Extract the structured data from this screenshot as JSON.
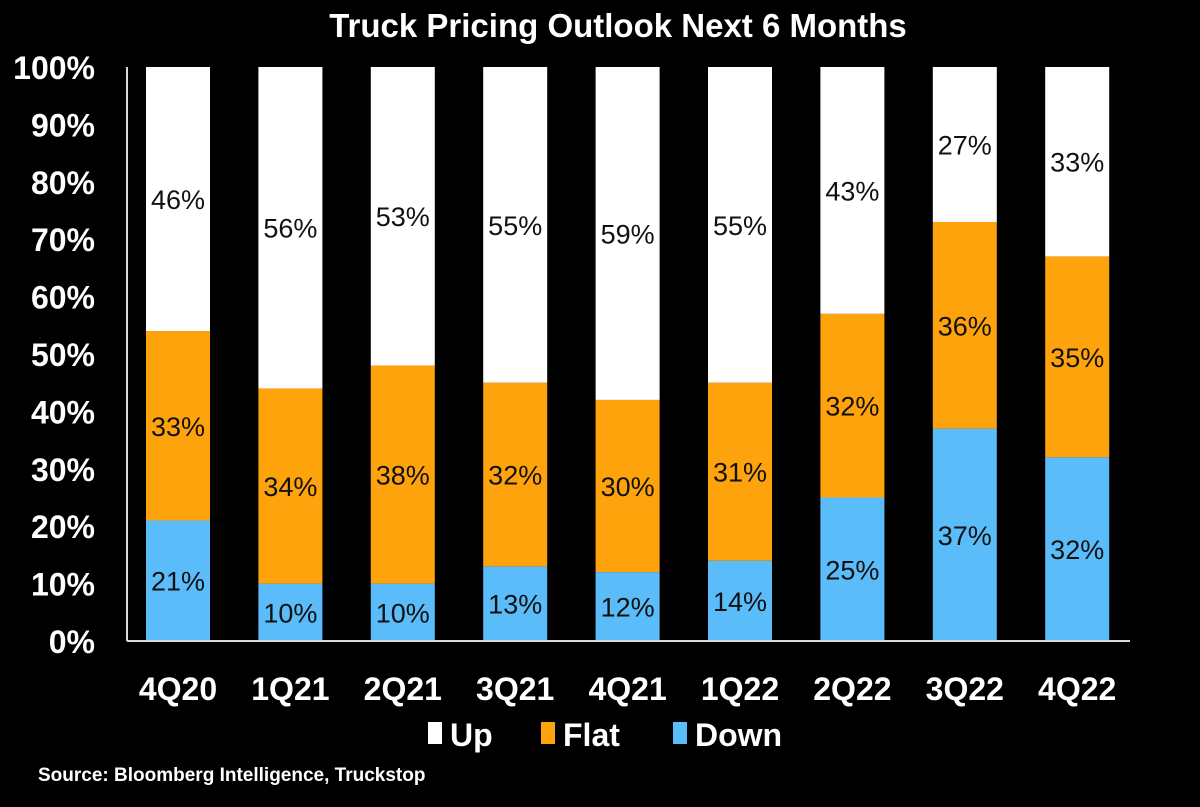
{
  "chart_data": {
    "type": "bar",
    "stacked": true,
    "title": "Truck Pricing Outlook Next 6 Months",
    "xlabel": "",
    "ylabel": "",
    "categories": [
      "4Q20",
      "1Q21",
      "2Q21",
      "3Q21",
      "4Q21",
      "1Q22",
      "2Q22",
      "3Q22",
      "4Q22"
    ],
    "series": [
      {
        "name": "Down",
        "color": "#5bbcfa",
        "values": [
          21,
          10,
          10,
          13,
          12,
          14,
          25,
          37,
          32
        ],
        "labels": [
          "21%",
          "10%",
          "10%",
          "13%",
          "12%",
          "14%",
          "25%",
          "37%",
          "32%"
        ]
      },
      {
        "name": "Flat",
        "color": "#ffa30d",
        "values": [
          33,
          34,
          38,
          32,
          30,
          31,
          32,
          36,
          35
        ],
        "labels": [
          "33%",
          "34%",
          "38%",
          "32%",
          "30%",
          "31%",
          "32%",
          "36%",
          "35%"
        ]
      },
      {
        "name": "Up",
        "color": "#ffffff",
        "values": [
          46,
          56,
          53,
          55,
          59,
          55,
          43,
          27,
          33
        ],
        "labels": [
          "46%",
          "56%",
          "53%",
          "55%",
          "59%",
          "55%",
          "43%",
          "27%",
          "33%"
        ]
      }
    ],
    "ylim": [
      0,
      100
    ],
    "yticks": [
      "0%",
      "10%",
      "20%",
      "30%",
      "40%",
      "50%",
      "60%",
      "70%",
      "80%",
      "90%",
      "100%"
    ],
    "grid": false,
    "legend": {
      "placement": "bottom-center",
      "order": [
        "Up",
        "Flat",
        "Down"
      ]
    },
    "source": "Source: Bloomberg Intelligence, Truckstop"
  }
}
